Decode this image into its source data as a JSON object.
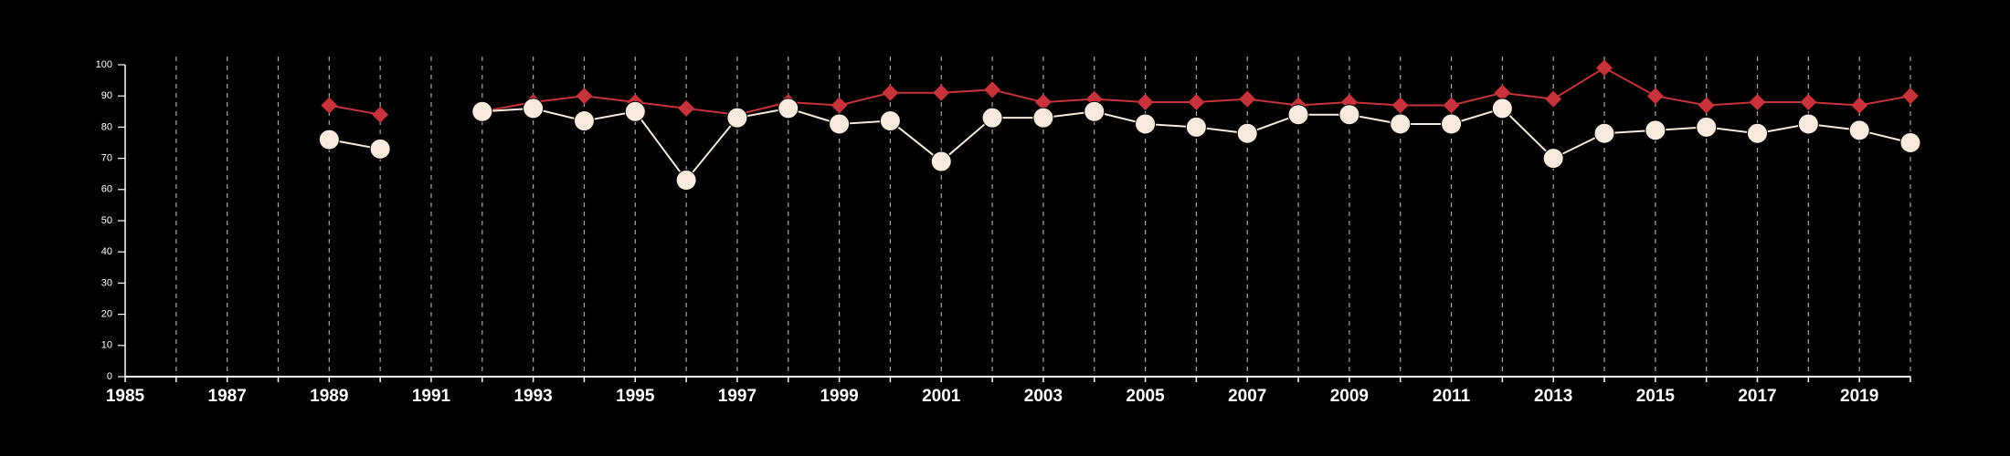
{
  "chart_data": {
    "type": "line",
    "title": "",
    "xlabel": "",
    "ylabel": "",
    "xlim": [
      1985,
      2020
    ],
    "ylim": [
      0,
      100
    ],
    "x_ticks": [
      1985,
      1986,
      1987,
      1988,
      1989,
      1990,
      1991,
      1992,
      1993,
      1994,
      1995,
      1996,
      1997,
      1998,
      1999,
      2000,
      2001,
      2002,
      2003,
      2004,
      2005,
      2006,
      2007,
      2008,
      2009,
      2010,
      2011,
      2012,
      2013,
      2014,
      2015,
      2016,
      2017,
      2018,
      2019,
      2020
    ],
    "x_tick_labels": [
      "1985",
      "1987",
      "1989",
      "1991",
      "1993",
      "1995",
      "1997",
      "1999",
      "2001",
      "2003",
      "2005",
      "2007",
      "2009",
      "2011",
      "2013",
      "2015",
      "2017",
      "2019"
    ],
    "y_ticks": [
      0,
      10,
      20,
      30,
      40,
      50,
      60,
      70,
      80,
      90,
      100
    ],
    "y_tick_labels": [
      "0",
      "10",
      "20",
      "30",
      "40",
      "50",
      "60",
      "70",
      "80",
      "90",
      "100"
    ],
    "grid": "vertical dashed",
    "legend": "none",
    "x": [
      1989,
      1990,
      1992,
      1993,
      1994,
      1995,
      1996,
      1997,
      1998,
      1999,
      2000,
      2001,
      2002,
      2003,
      2004,
      2005,
      2006,
      2007,
      2008,
      2009,
      2010,
      2011,
      2012,
      2013,
      2014,
      2015,
      2016,
      2017,
      2018,
      2019,
      2020
    ],
    "series": [
      {
        "color": "#c8323a",
        "marker": "diamond",
        "values": [
          87,
          84,
          85,
          88,
          90,
          88,
          86,
          84,
          88,
          87,
          91,
          91,
          92,
          88,
          89,
          88,
          88,
          89,
          87,
          88,
          87,
          87,
          91,
          89,
          99,
          90,
          87,
          88,
          88,
          87,
          90
        ]
      },
      {
        "color": "#f8eadc",
        "marker": "circle",
        "values": [
          76,
          73,
          85,
          86,
          82,
          85,
          63,
          83,
          86,
          81,
          82,
          69,
          83,
          83,
          85,
          81,
          80,
          78,
          84,
          84,
          81,
          81,
          86,
          70,
          78,
          79,
          80,
          78,
          81,
          79,
          75
        ]
      }
    ]
  }
}
